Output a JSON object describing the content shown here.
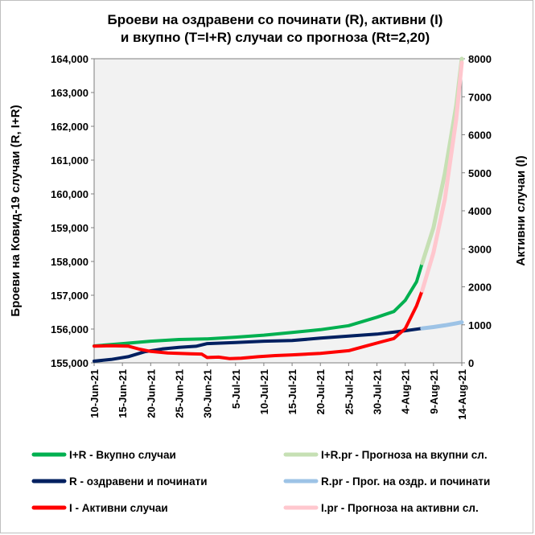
{
  "chart_data": {
    "type": "line",
    "title_lines": [
      "Броеви на оздравени со починати (R), активни  (I)",
      "и вкупно (T=I+R) случаи со прогноза (Rt=2,20)"
    ],
    "ylabel_left": "Броеви на Ковид-19  случаи (R, I+R)",
    "ylabel_right": "Активни  случаи (I)",
    "y_left_ticks": [
      "155,000",
      "156,000",
      "157,000",
      "158,000",
      "159,000",
      "160,000",
      "161,000",
      "162,000",
      "163,000",
      "164,000"
    ],
    "y_right_ticks": [
      "0",
      "1000",
      "2000",
      "3000",
      "4000",
      "5000",
      "6000",
      "7000",
      "8000"
    ],
    "ylim_left": [
      155000,
      164000
    ],
    "ylim_right": [
      0,
      8000
    ],
    "x_ticks": [
      "10-Jun-21",
      "15-Jun-21",
      "20-Jun-21",
      "25-Jun-21",
      "30-Jun-21",
      "5-Jul-21",
      "10-Jul-21",
      "15-Jul-21",
      "20-Jul-21",
      "25-Jul-21",
      "30-Jul-21",
      "4-Aug-21",
      "9-Aug-21",
      "14-Aug-21"
    ],
    "x_start": "10-Jun-21",
    "x_end": "14-Aug-21",
    "grid": false,
    "plot_background": "#f2f2f2",
    "legend_position": "bottom",
    "series": [
      {
        "name": "I+R - Вкупно случаи",
        "axis": "left",
        "color": "#00b050",
        "width": 4,
        "points": [
          [
            "10-Jun-21",
            155500
          ],
          [
            "15-Jun-21",
            155570
          ],
          [
            "20-Jun-21",
            155640
          ],
          [
            "25-Jun-21",
            155690
          ],
          [
            "30-Jun-21",
            155710
          ],
          [
            "5-Jul-21",
            155760
          ],
          [
            "10-Jul-21",
            155820
          ],
          [
            "15-Jul-21",
            155900
          ],
          [
            "20-Jul-21",
            155980
          ],
          [
            "25-Jul-21",
            156100
          ],
          [
            "30-Jul-21",
            156350
          ],
          [
            "2-Aug-21",
            156520
          ],
          [
            "4-Aug-21",
            156850
          ],
          [
            "6-Aug-21",
            157400
          ],
          [
            "7-Aug-21",
            157950
          ]
        ]
      },
      {
        "name": "R - оздравени и починати",
        "axis": "left",
        "color": "#002060",
        "width": 4,
        "points": [
          [
            "10-Jun-21",
            155050
          ],
          [
            "13-Jun-21",
            155100
          ],
          [
            "16-Jun-21",
            155180
          ],
          [
            "19-Jun-21",
            155330
          ],
          [
            "22-Jun-21",
            155410
          ],
          [
            "25-Jun-21",
            155460
          ],
          [
            "28-Jun-21",
            155490
          ],
          [
            "30-Jun-21",
            155570
          ],
          [
            "5-Jul-21",
            155600
          ],
          [
            "10-Jul-21",
            155640
          ],
          [
            "15-Jul-21",
            155660
          ],
          [
            "20-Jul-21",
            155730
          ],
          [
            "25-Jul-21",
            155790
          ],
          [
            "30-Jul-21",
            155850
          ],
          [
            "4-Aug-21",
            155950
          ],
          [
            "7-Aug-21",
            156020
          ]
        ]
      },
      {
        "name": "I - Активни  случаи",
        "axis": "right",
        "color": "#ff0000",
        "width": 4,
        "points": [
          [
            "10-Jun-21",
            440
          ],
          [
            "13-Jun-21",
            450
          ],
          [
            "16-Jun-21",
            440
          ],
          [
            "18-Jun-21",
            360
          ],
          [
            "20-Jun-21",
            300
          ],
          [
            "23-Jun-21",
            260
          ],
          [
            "27-Jun-21",
            240
          ],
          [
            "29-Jun-21",
            230
          ],
          [
            "30-Jun-21",
            140
          ],
          [
            "2-Jul-21",
            150
          ],
          [
            "4-Jul-21",
            110
          ],
          [
            "6-Jul-21",
            120
          ],
          [
            "9-Jul-21",
            160
          ],
          [
            "12-Jul-21",
            190
          ],
          [
            "15-Jul-21",
            210
          ],
          [
            "20-Jul-21",
            250
          ],
          [
            "25-Jul-21",
            320
          ],
          [
            "28-Jul-21",
            440
          ],
          [
            "31-Jul-21",
            560
          ],
          [
            "2-Aug-21",
            640
          ],
          [
            "4-Aug-21",
            900
          ],
          [
            "6-Aug-21",
            1500
          ],
          [
            "7-Aug-21",
            1900
          ]
        ]
      },
      {
        "name": "I+R.pr  - Прогноза на вкупни  сл.",
        "axis": "left",
        "color": "#c6e0b4",
        "width": 5,
        "points": [
          [
            "7-Aug-21",
            157950
          ],
          [
            "9-Aug-21",
            159000
          ],
          [
            "11-Aug-21",
            160600
          ],
          [
            "13-Aug-21",
            162600
          ],
          [
            "14-Aug-21",
            164000
          ]
        ]
      },
      {
        "name": "R.pr  - Прог. на оздр. и починати",
        "axis": "left",
        "color": "#9dc3e6",
        "width": 5,
        "points": [
          [
            "7-Aug-21",
            156020
          ],
          [
            "9-Aug-21",
            156060
          ],
          [
            "11-Aug-21",
            156110
          ],
          [
            "13-Aug-21",
            156170
          ],
          [
            "14-Aug-21",
            156200
          ]
        ]
      },
      {
        "name": "I.pr  - Прогноза на активни  сл.",
        "axis": "right",
        "color": "#ffc7ce",
        "width": 5,
        "points": [
          [
            "7-Aug-21",
            1900
          ],
          [
            "9-Aug-21",
            2900
          ],
          [
            "11-Aug-21",
            4300
          ],
          [
            "13-Aug-21",
            6400
          ],
          [
            "14-Aug-21",
            7900
          ]
        ]
      }
    ],
    "legend": [
      {
        "key": "I+R",
        "label": "I+R - Вкупно случаи",
        "color": "#00b050"
      },
      {
        "key": "I+R.pr",
        "label": "I+R.pr  - Прогноза на вкупни  сл.",
        "color": "#c6e0b4"
      },
      {
        "key": "R",
        "label": "R - оздравени и починати",
        "color": "#002060"
      },
      {
        "key": "R.pr",
        "label": "R.pr  - Прог. на оздр. и починати",
        "color": "#9dc3e6"
      },
      {
        "key": "I",
        "label": "I - Активни  случаи",
        "color": "#ff0000"
      },
      {
        "key": "I.pr",
        "label": "I.pr  - Прогноза на активни  сл.",
        "color": "#ffc7ce"
      }
    ]
  }
}
